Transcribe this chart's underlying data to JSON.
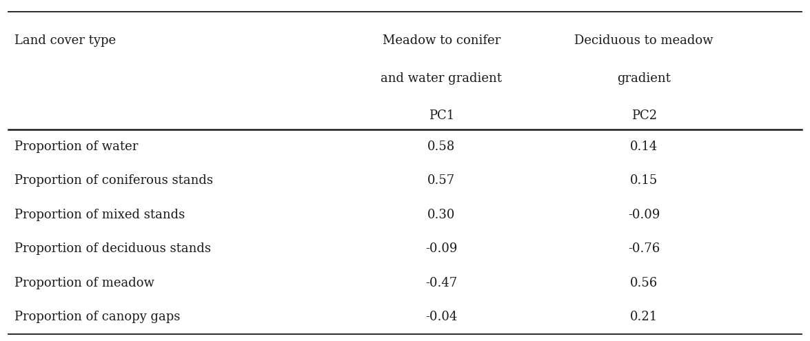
{
  "col1_label": "Land cover type",
  "col2_line1": "Meadow to conifer",
  "col2_line2": "and water gradient",
  "col2_line3": "PC1",
  "col3_line1": "Deciduous to meadow",
  "col3_line2": "gradient",
  "col3_line3": "PC2",
  "rows": [
    [
      "Proportion of water",
      "0.58",
      "0.14"
    ],
    [
      "Proportion of coniferous stands",
      "0.57",
      "0.15"
    ],
    [
      "Proportion of mixed stands",
      "0.30",
      "-0.09"
    ],
    [
      "Proportion of deciduous stands",
      "-0.09",
      "-0.76"
    ],
    [
      "Proportion of meadow",
      "-0.47",
      "0.56"
    ],
    [
      "Proportion of canopy gaps",
      "-0.04",
      "0.21"
    ]
  ],
  "bg_color": "#ffffff",
  "text_color": "#1a1a1a",
  "font_size": 13.0
}
